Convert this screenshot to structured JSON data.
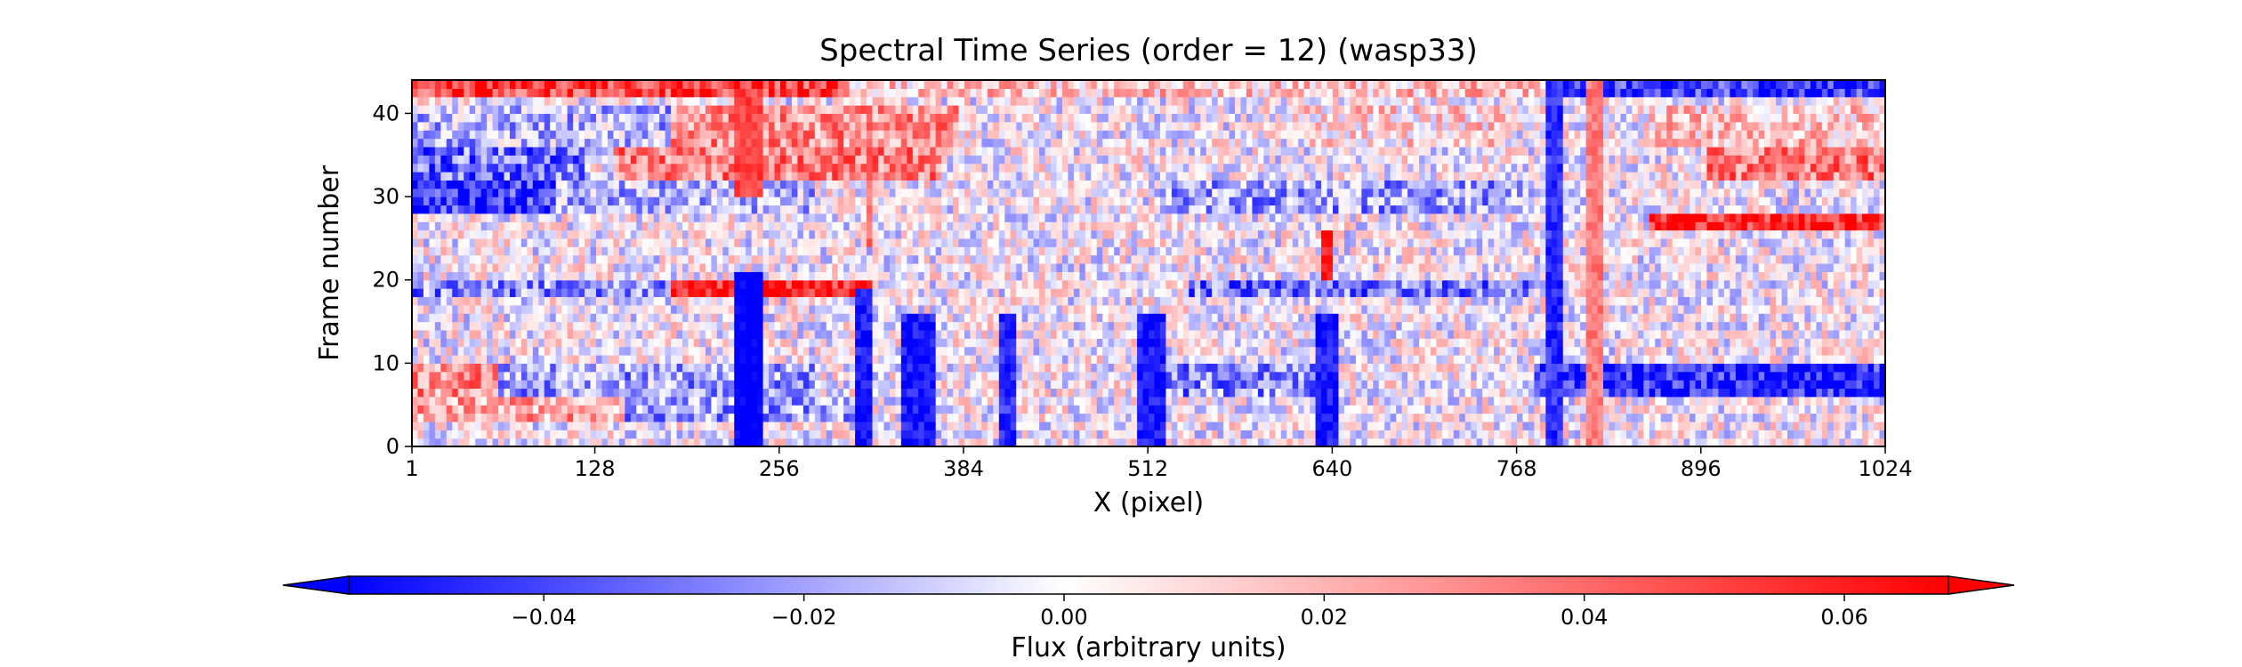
{
  "chart_data": {
    "type": "heatmap",
    "title": "Spectral Time Series (order = 12) (wasp33)",
    "xlabel": "X (pixel)",
    "ylabel": "Frame number",
    "xlim": [
      1,
      1024
    ],
    "ylim": [
      0,
      44
    ],
    "x_ticks": [
      1,
      128,
      256,
      384,
      512,
      640,
      768,
      896,
      1024
    ],
    "y_ticks": [
      0,
      10,
      20,
      30,
      40
    ],
    "frames": 44,
    "colormap": {
      "name": "bwr",
      "vmin": -0.055,
      "vmax": 0.068,
      "colors": [
        "#0000ff",
        "#ffffff",
        "#ff0000"
      ],
      "extend": "both"
    },
    "colorbar": {
      "label": "Flux (arbitrary units)",
      "orientation": "horizontal",
      "ticks": [
        -0.04,
        -0.02,
        0.0,
        0.02,
        0.04,
        0.06
      ],
      "tick_labels": [
        "−0.04",
        "−0.02",
        "0.00",
        "0.02",
        "0.04",
        "0.06"
      ]
    },
    "row_levels": [
      {
        "frames": [
          42,
          43
        ],
        "regions": [
          {
            "x": [
              1,
              300
            ],
            "v": 0.05
          },
          {
            "x": [
              300,
              800
            ],
            "v": 0.015
          },
          {
            "x": [
              800,
              1024
            ],
            "v": -0.045
          }
        ]
      },
      {
        "frames": [
          36,
          40
        ],
        "regions": [
          {
            "x": [
              1,
              180
            ],
            "v": -0.015
          },
          {
            "x": [
              180,
              380
            ],
            "v": 0.03
          },
          {
            "x": [
              620,
              760
            ],
            "v": 0.01
          },
          {
            "x": [
              860,
              1024
            ],
            "v": 0.015
          }
        ]
      },
      {
        "frames": [
          32,
          35
        ],
        "regions": [
          {
            "x": [
              1,
              120
            ],
            "v": -0.03
          },
          {
            "x": [
              140,
              370
            ],
            "v": 0.035
          },
          {
            "x": [
              900,
              1024
            ],
            "v": 0.035
          }
        ]
      },
      {
        "frames": [
          28,
          31
        ],
        "regions": [
          {
            "x": [
              1,
              100
            ],
            "v": -0.045
          },
          {
            "x": [
              100,
              280
            ],
            "v": -0.015
          },
          {
            "x": [
              520,
              780
            ],
            "v": -0.02
          }
        ]
      },
      {
        "frames": [
          26,
          27
        ],
        "regions": [
          {
            "x": [
              860,
              1024
            ],
            "v": 0.06
          }
        ]
      },
      {
        "frames": [
          18,
          19
        ],
        "regions": [
          {
            "x": [
              1,
              180
            ],
            "v": -0.025
          },
          {
            "x": [
              180,
              320
            ],
            "v": 0.06
          },
          {
            "x": [
              540,
              780
            ],
            "v": -0.03
          }
        ]
      },
      {
        "frames": [
          6,
          9
        ],
        "regions": [
          {
            "x": [
              1,
              60
            ],
            "v": 0.03
          },
          {
            "x": [
              60,
              280
            ],
            "v": -0.02
          },
          {
            "x": [
              520,
              640
            ],
            "v": -0.025
          },
          {
            "x": [
              780,
              1024
            ],
            "v": -0.05
          }
        ]
      },
      {
        "frames": [
          3,
          5
        ],
        "regions": [
          {
            "x": [
              1,
              150
            ],
            "v": 0.025
          },
          {
            "x": [
              150,
              320
            ],
            "v": -0.02
          }
        ]
      }
    ],
    "column_features": [
      {
        "x": [
          225,
          245
        ],
        "frames": [
          0,
          20
        ],
        "v": -0.06
      },
      {
        "x": [
          225,
          245
        ],
        "frames": [
          30,
          42
        ],
        "v": 0.05
      },
      {
        "x": [
          310,
          320
        ],
        "frames": [
          0,
          18
        ],
        "v": -0.05
      },
      {
        "x": [
          315,
          320
        ],
        "frames": [
          24,
          40
        ],
        "v": 0.04
      },
      {
        "x": [
          340,
          365
        ],
        "frames": [
          0,
          15
        ],
        "v": -0.05
      },
      {
        "x": [
          410,
          420
        ],
        "frames": [
          0,
          15
        ],
        "v": -0.045
      },
      {
        "x": [
          505,
          525
        ],
        "frames": [
          0,
          15
        ],
        "v": -0.05
      },
      {
        "x": [
          630,
          645
        ],
        "frames": [
          0,
          15
        ],
        "v": -0.05
      },
      {
        "x": [
          632,
          642
        ],
        "frames": [
          20,
          25
        ],
        "v": 0.06
      },
      {
        "x": [
          790,
          800
        ],
        "frames": [
          0,
          43
        ],
        "v": -0.045
      },
      {
        "x": [
          815,
          830
        ],
        "frames": [
          0,
          43
        ],
        "v": 0.035
      }
    ]
  }
}
